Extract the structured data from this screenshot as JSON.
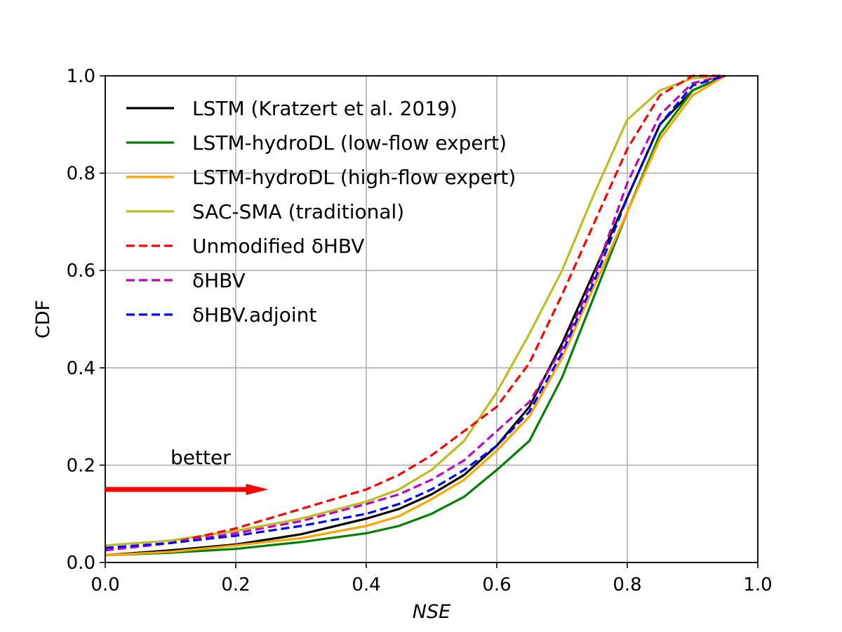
{
  "chart_data": {
    "type": "line",
    "title": "",
    "xlabel": "NSE",
    "ylabel": "CDF",
    "xlim": [
      0.0,
      1.0
    ],
    "ylim": [
      0.0,
      1.0
    ],
    "grid": true,
    "xticks": [
      0.0,
      0.2,
      0.4,
      0.6,
      0.8,
      1.0
    ],
    "yticks": [
      0.0,
      0.2,
      0.4,
      0.6,
      0.8,
      1.0
    ],
    "xtick_labels": [
      "0.0",
      "0.2",
      "0.4",
      "0.6",
      "0.8",
      "1.0"
    ],
    "ytick_labels": [
      "0.0",
      "0.2",
      "0.4",
      "0.6",
      "0.8",
      "1.0"
    ],
    "legend_position": "top-left",
    "annotation": {
      "text": "better",
      "arrow": {
        "from": [
          0.0,
          0.15
        ],
        "to": [
          0.25,
          0.15
        ]
      },
      "color": "#ff0000"
    },
    "series": [
      {
        "name": "LSTM (Kratzert et al. 2019)",
        "color": "#000000",
        "dash": "solid",
        "points": [
          [
            0.0,
            0.015
          ],
          [
            0.1,
            0.025
          ],
          [
            0.2,
            0.037
          ],
          [
            0.3,
            0.058
          ],
          [
            0.4,
            0.09
          ],
          [
            0.45,
            0.11
          ],
          [
            0.5,
            0.14
          ],
          [
            0.55,
            0.18
          ],
          [
            0.6,
            0.24
          ],
          [
            0.65,
            0.32
          ],
          [
            0.7,
            0.45
          ],
          [
            0.75,
            0.6
          ],
          [
            0.8,
            0.75
          ],
          [
            0.85,
            0.9
          ],
          [
            0.9,
            0.97
          ],
          [
            0.95,
            1.0
          ]
        ]
      },
      {
        "name": "LSTM-hydroDL (low-flow expert)",
        "color": "#008000",
        "dash": "solid",
        "points": [
          [
            0.0,
            0.015
          ],
          [
            0.1,
            0.02
          ],
          [
            0.2,
            0.028
          ],
          [
            0.3,
            0.042
          ],
          [
            0.4,
            0.06
          ],
          [
            0.45,
            0.075
          ],
          [
            0.5,
            0.1
          ],
          [
            0.55,
            0.135
          ],
          [
            0.6,
            0.19
          ],
          [
            0.65,
            0.25
          ],
          [
            0.7,
            0.38
          ],
          [
            0.75,
            0.55
          ],
          [
            0.8,
            0.72
          ],
          [
            0.85,
            0.88
          ],
          [
            0.9,
            0.97
          ],
          [
            0.95,
            1.0
          ]
        ]
      },
      {
        "name": "LSTM-hydroDL (high-flow expert)",
        "color": "#ffa500",
        "dash": "solid",
        "points": [
          [
            0.0,
            0.015
          ],
          [
            0.1,
            0.022
          ],
          [
            0.2,
            0.035
          ],
          [
            0.3,
            0.05
          ],
          [
            0.4,
            0.075
          ],
          [
            0.45,
            0.095
          ],
          [
            0.5,
            0.13
          ],
          [
            0.55,
            0.17
          ],
          [
            0.6,
            0.23
          ],
          [
            0.65,
            0.3
          ],
          [
            0.7,
            0.42
          ],
          [
            0.75,
            0.57
          ],
          [
            0.8,
            0.72
          ],
          [
            0.85,
            0.87
          ],
          [
            0.9,
            0.96
          ],
          [
            0.95,
            1.0
          ]
        ]
      },
      {
        "name": "SAC-SMA (traditional)",
        "color": "#bcbd22",
        "dash": "solid",
        "points": [
          [
            0.0,
            0.035
          ],
          [
            0.1,
            0.045
          ],
          [
            0.2,
            0.065
          ],
          [
            0.3,
            0.09
          ],
          [
            0.4,
            0.125
          ],
          [
            0.45,
            0.15
          ],
          [
            0.5,
            0.19
          ],
          [
            0.55,
            0.25
          ],
          [
            0.6,
            0.35
          ],
          [
            0.65,
            0.47
          ],
          [
            0.7,
            0.6
          ],
          [
            0.75,
            0.76
          ],
          [
            0.8,
            0.91
          ],
          [
            0.85,
            0.97
          ],
          [
            0.9,
            0.995
          ],
          [
            0.95,
            1.0
          ]
        ]
      },
      {
        "name": "Unmodified δHBV",
        "color": "#ff0000",
        "dash": "dashed",
        "points": [
          [
            0.0,
            0.025
          ],
          [
            0.1,
            0.04
          ],
          [
            0.2,
            0.07
          ],
          [
            0.3,
            0.11
          ],
          [
            0.4,
            0.15
          ],
          [
            0.45,
            0.18
          ],
          [
            0.5,
            0.22
          ],
          [
            0.55,
            0.27
          ],
          [
            0.6,
            0.32
          ],
          [
            0.65,
            0.41
          ],
          [
            0.7,
            0.55
          ],
          [
            0.75,
            0.7
          ],
          [
            0.8,
            0.85
          ],
          [
            0.85,
            0.96
          ],
          [
            0.9,
            1.0
          ],
          [
            0.95,
            1.0
          ]
        ]
      },
      {
        "name": "δHBV",
        "color": "#bf00bf",
        "dash": "dashed",
        "points": [
          [
            0.0,
            0.025
          ],
          [
            0.1,
            0.04
          ],
          [
            0.2,
            0.06
          ],
          [
            0.3,
            0.085
          ],
          [
            0.4,
            0.12
          ],
          [
            0.45,
            0.14
          ],
          [
            0.5,
            0.17
          ],
          [
            0.55,
            0.21
          ],
          [
            0.6,
            0.27
          ],
          [
            0.65,
            0.33
          ],
          [
            0.7,
            0.44
          ],
          [
            0.75,
            0.59
          ],
          [
            0.8,
            0.78
          ],
          [
            0.85,
            0.92
          ],
          [
            0.9,
            0.985
          ],
          [
            0.95,
            1.0
          ]
        ]
      },
      {
        "name": "δHBV.adjoint",
        "color": "#0000ff",
        "dash": "dashed",
        "points": [
          [
            0.0,
            0.03
          ],
          [
            0.1,
            0.04
          ],
          [
            0.2,
            0.055
          ],
          [
            0.3,
            0.075
          ],
          [
            0.4,
            0.1
          ],
          [
            0.45,
            0.12
          ],
          [
            0.5,
            0.15
          ],
          [
            0.55,
            0.19
          ],
          [
            0.6,
            0.24
          ],
          [
            0.65,
            0.31
          ],
          [
            0.7,
            0.43
          ],
          [
            0.75,
            0.58
          ],
          [
            0.8,
            0.75
          ],
          [
            0.85,
            0.9
          ],
          [
            0.9,
            0.98
          ],
          [
            0.95,
            1.0
          ]
        ]
      }
    ]
  }
}
